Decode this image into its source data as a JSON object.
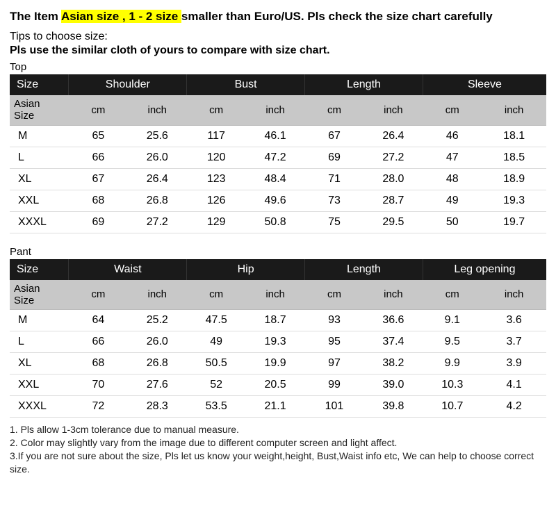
{
  "headline": {
    "part1": "The Item ",
    "highlight": " Asian size , 1 - 2 size ",
    "part2": " smaller than Euro/US. Pls check the size chart carefully"
  },
  "tips_line": "Tips to choose size:",
  "tips_bold": "Pls use the similar cloth of yours to compare with size chart.",
  "top": {
    "label": "Top",
    "header1": [
      "Size",
      "Shoulder",
      "Bust",
      "Length",
      "Sleeve"
    ],
    "header2": [
      "Asian Size",
      "cm",
      "inch",
      "cm",
      "inch",
      "cm",
      "inch",
      "cm",
      "inch"
    ],
    "rows": [
      [
        "M",
        "65",
        "25.6",
        "117",
        "46.1",
        "67",
        "26.4",
        "46",
        "18.1"
      ],
      [
        "L",
        "66",
        "26.0",
        "120",
        "47.2",
        "69",
        "27.2",
        "47",
        "18.5"
      ],
      [
        "XL",
        "67",
        "26.4",
        "123",
        "48.4",
        "71",
        "28.0",
        "48",
        "18.9"
      ],
      [
        "XXL",
        "68",
        "26.8",
        "126",
        "49.6",
        "73",
        "28.7",
        "49",
        "19.3"
      ],
      [
        "XXXL",
        "69",
        "27.2",
        "129",
        "50.8",
        "75",
        "29.5",
        "50",
        "19.7"
      ]
    ]
  },
  "pant": {
    "label": "Pant",
    "header1": [
      "Size",
      "Waist",
      "Hip",
      "Length",
      "Leg opening"
    ],
    "header2": [
      "Asian Size",
      "cm",
      "inch",
      "cm",
      "inch",
      "cm",
      "inch",
      "cm",
      "inch"
    ],
    "rows": [
      [
        "M",
        "64",
        "25.2",
        "47.5",
        "18.7",
        "93",
        "36.6",
        "9.1",
        "3.6"
      ],
      [
        "L",
        "66",
        "26.0",
        "49",
        "19.3",
        "95",
        "37.4",
        "9.5",
        "3.7"
      ],
      [
        "XL",
        "68",
        "26.8",
        "50.5",
        "19.9",
        "97",
        "38.2",
        "9.9",
        "3.9"
      ],
      [
        "XXL",
        "70",
        "27.6",
        "52",
        "20.5",
        "99",
        "39.0",
        "10.3",
        "4.1"
      ],
      [
        "XXXL",
        "72",
        "28.3",
        "53.5",
        "21.1",
        "101",
        "39.8",
        "10.7",
        "4.2"
      ]
    ]
  },
  "notes": [
    "1. Pls allow 1-3cm tolerance due to manual measure.",
    "2. Color may slightly vary from the image due to different computer screen and light affect.",
    "3.If you are not sure about the size, Pls let us know your weight,height, Bust,Waist info etc, We can help to choose correct size."
  ],
  "style": {
    "highlight_bg": "#ffff00",
    "header_bg": "#1a1a1a",
    "header_fg": "#ffffff",
    "subheader_bg": "#c8c8c8",
    "row_border": "#dddddd",
    "font_family": "Arial",
    "body_fontsize": 15
  }
}
